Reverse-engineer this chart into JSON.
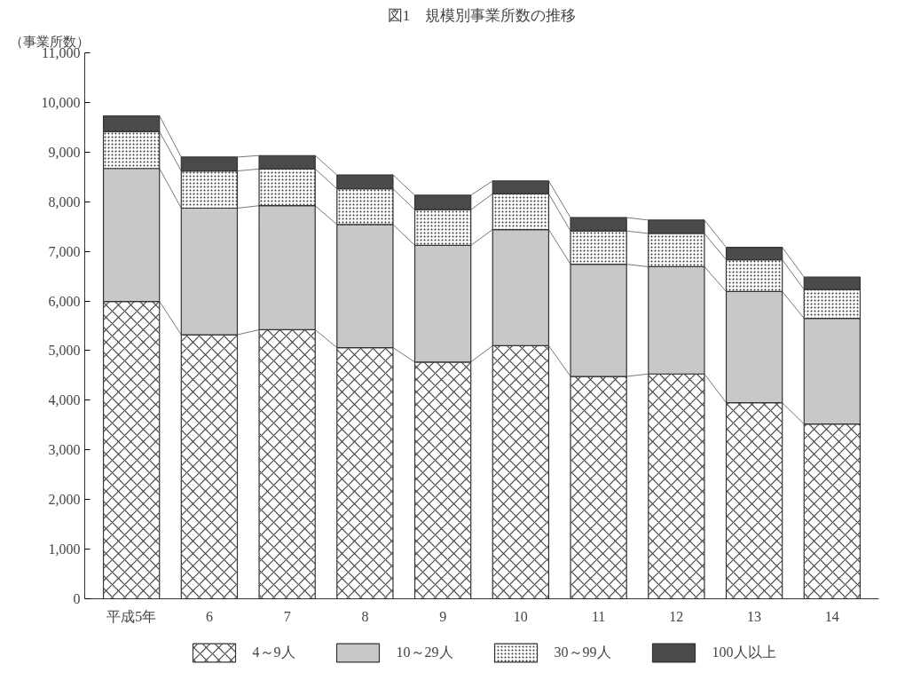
{
  "chart_data": {
    "type": "bar",
    "stacked": true,
    "title": "図1　規模別事業所数の推移",
    "ylabel": "（事業所数）",
    "categories": [
      "平成5年",
      "6",
      "7",
      "8",
      "9",
      "10",
      "11",
      "12",
      "13",
      "14"
    ],
    "series": [
      {
        "name": "4～9人",
        "color": "#ffffff",
        "values": [
          5990,
          5320,
          5420,
          5060,
          4770,
          5100,
          4480,
          4530,
          3950,
          3520
        ]
      },
      {
        "name": "10～29人",
        "color": "#c8c8c8",
        "values": [
          2680,
          2550,
          2500,
          2480,
          2350,
          2340,
          2260,
          2160,
          2240,
          2130
        ]
      },
      {
        "name": "30～99人",
        "color": "#ffffff",
        "values": [
          740,
          750,
          740,
          720,
          720,
          720,
          670,
          670,
          640,
          580
        ]
      },
      {
        "name": "100人以上",
        "color": "#4a4a4a",
        "values": [
          320,
          280,
          270,
          280,
          290,
          260,
          270,
          270,
          250,
          250
        ]
      }
    ],
    "ylim": [
      0,
      11000
    ],
    "yticks": [
      0,
      {
        "value": 1000,
        "label": "1,000"
      },
      {
        "value": 2000,
        "label": "2,000"
      },
      {
        "value": 3000,
        "label": "3,000"
      },
      {
        "value": 4000,
        "label": "4,000"
      },
      {
        "value": 5000,
        "label": "5,000"
      },
      {
        "value": 6000,
        "label": "6,000"
      },
      {
        "value": 7000,
        "label": "7,000"
      },
      {
        "value": 8000,
        "label": "8,000"
      },
      {
        "value": 9000,
        "label": "9,000"
      },
      {
        "value": 10000,
        "label": "10,000"
      },
      {
        "value": 11000,
        "label": "11,000"
      }
    ],
    "grid": false,
    "legend": "bottom"
  }
}
